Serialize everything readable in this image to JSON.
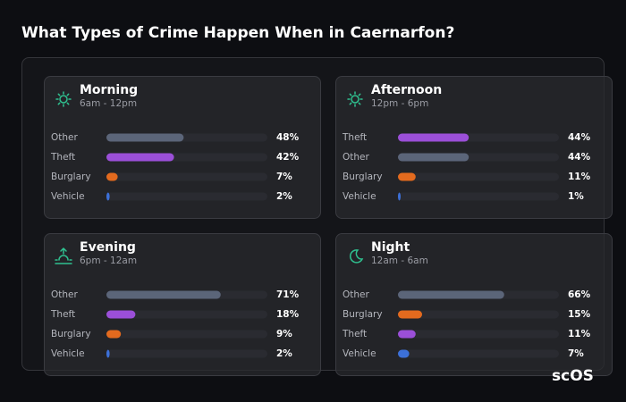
{
  "title": "What Types of Crime Happen When in Caernarfon?",
  "logo": "scOS",
  "chart_data": [
    {
      "type": "bar",
      "title": "Morning",
      "subtitle": "6am - 12pm",
      "xlim": [
        0,
        100
      ],
      "categories": [
        "Other",
        "Theft",
        "Burglary",
        "Vehicle"
      ],
      "values": [
        48,
        42,
        7,
        2
      ],
      "value_labels": [
        "48%",
        "42%",
        "7%",
        "2%"
      ],
      "colors": [
        "#5b6579",
        "#9b4fd8",
        "#e36a1e",
        "#3c70d8"
      ]
    },
    {
      "type": "bar",
      "title": "Afternoon",
      "subtitle": "12pm - 6pm",
      "xlim": [
        0,
        100
      ],
      "categories": [
        "Theft",
        "Other",
        "Burglary",
        "Vehicle"
      ],
      "values": [
        44,
        44,
        11,
        1
      ],
      "value_labels": [
        "44%",
        "44%",
        "11%",
        "1%"
      ],
      "colors": [
        "#9b4fd8",
        "#5b6579",
        "#e36a1e",
        "#3c70d8"
      ]
    },
    {
      "type": "bar",
      "title": "Evening",
      "subtitle": "6pm - 12am",
      "xlim": [
        0,
        100
      ],
      "categories": [
        "Other",
        "Theft",
        "Burglary",
        "Vehicle"
      ],
      "values": [
        71,
        18,
        9,
        2
      ],
      "value_labels": [
        "71%",
        "18%",
        "9%",
        "2%"
      ],
      "colors": [
        "#5b6579",
        "#9b4fd8",
        "#e36a1e",
        "#3c70d8"
      ]
    },
    {
      "type": "bar",
      "title": "Night",
      "subtitle": "12am - 6am",
      "xlim": [
        0,
        100
      ],
      "categories": [
        "Other",
        "Burglary",
        "Theft",
        "Vehicle"
      ],
      "values": [
        66,
        15,
        11,
        7
      ],
      "value_labels": [
        "66%",
        "15%",
        "11%",
        "7%"
      ],
      "colors": [
        "#5b6579",
        "#e36a1e",
        "#9b4fd8",
        "#3c70d8"
      ]
    }
  ]
}
